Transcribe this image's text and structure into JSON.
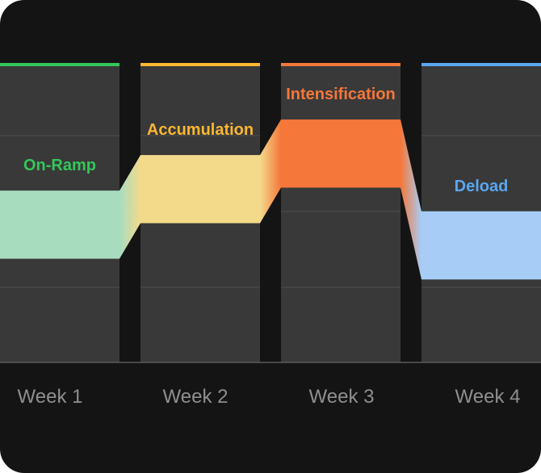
{
  "chart_data": {
    "type": "area",
    "categories": [
      "Week 1",
      "Week 2",
      "Week 3",
      "Week 4"
    ],
    "phases": [
      {
        "label": "On-Ramp",
        "color": "#34c759",
        "band_color": "#a8dcbf",
        "band_low": 35,
        "band_high": 58
      },
      {
        "label": "Accumulation",
        "color": "#fbb731",
        "band_color": "#f3da8b",
        "band_low": 47,
        "band_high": 70
      },
      {
        "label": "Intensification",
        "color": "#f5773a",
        "band_color": "#f5773a",
        "band_low": 59,
        "band_high": 82
      },
      {
        "label": "Deload",
        "color": "#5aa7f0",
        "band_color": "#a7cdf6",
        "band_low": 28,
        "band_high": 51
      }
    ],
    "ylim": [
      0,
      100
    ],
    "grid": true,
    "title": "",
    "xlabel": "",
    "ylabel": ""
  }
}
